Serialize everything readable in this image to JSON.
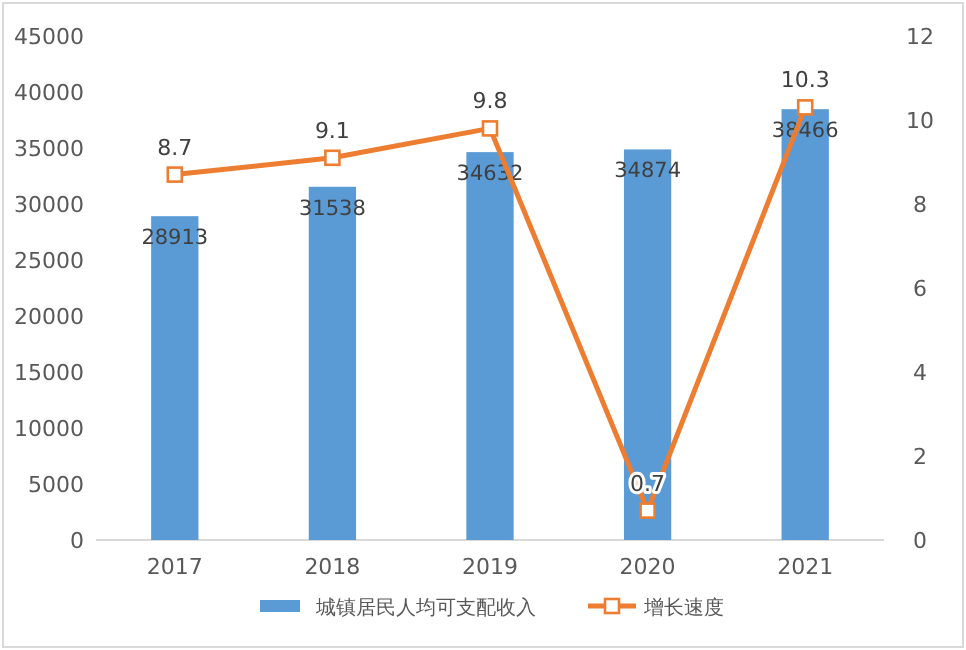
{
  "chart_data": {
    "type": "bar",
    "categories": [
      "2017",
      "2018",
      "2019",
      "2020",
      "2021"
    ],
    "series": [
      {
        "name": "城镇居民人均可支配收入",
        "color": "#5b9bd5",
        "values": [
          28913,
          31538,
          34632,
          34874,
          38466
        ]
      },
      {
        "name": "增长速度",
        "type": "line",
        "axis": "y2",
        "color": "#ed7d31",
        "values": [
          8.7,
          9.1,
          9.8,
          0.7,
          10.3
        ]
      }
    ],
    "ylim": [
      0,
      45000
    ],
    "yticks": [
      0,
      5000,
      10000,
      15000,
      20000,
      25000,
      30000,
      35000,
      40000,
      45000
    ],
    "y2lim": [
      0,
      12
    ],
    "y2ticks": [
      0,
      2,
      4,
      6,
      8,
      10,
      12
    ],
    "data_labels": true,
    "legend": "bottom",
    "marker": "square",
    "grid": false
  }
}
